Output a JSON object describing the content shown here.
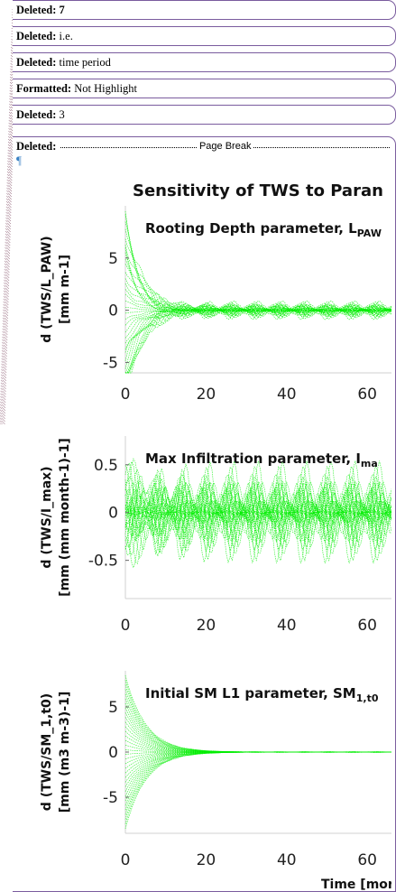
{
  "balloons": [
    {
      "label": "Deleted:",
      "text": "7",
      "bold_text": true
    },
    {
      "label": "Deleted:",
      "text": "i.e.",
      "bold_text": false
    },
    {
      "label": "Deleted:",
      "text": "time period",
      "bold_text": false
    },
    {
      "label": "Formatted:",
      "text": "Not Highlight",
      "bold_text": false
    },
    {
      "label": "Deleted:",
      "text": "3",
      "bold_text": false
    }
  ],
  "page_break": {
    "label": "Deleted:",
    "text": "Page Break",
    "pilcrow": "¶"
  },
  "figure": {
    "title": "Sensitivity of TWS to Paran",
    "xlabel": "Time [mor",
    "line_color": "#00ee00"
  },
  "chart_data": [
    {
      "type": "line",
      "title": "Rooting Depth parameter, L_PAW",
      "title_main": "Rooting Depth parameter, L",
      "title_sub": "PAW",
      "ylabel_line1": "d (TWS/L_PAW)",
      "ylabel_line2": "[mm m-1]",
      "ylim": [
        -6,
        10
      ],
      "yticks": [
        5,
        0,
        -5
      ],
      "xlim": [
        0,
        66
      ],
      "xticks": [
        0,
        20,
        40,
        60
      ],
      "envelope": {
        "initial_amplitude": 9.5,
        "decay_months": 4,
        "seasonal_amplitude": 1.0,
        "period_months": 6
      }
    },
    {
      "type": "line",
      "title": "Max Infiltration parameter, I_max",
      "title_main": "Max Infiltration parameter, I",
      "title_sub": "ma",
      "ylabel_line1": "d (TWS/I_max)",
      "ylabel_line2": "[mm (mm month-1)-1]",
      "ylim": [
        -0.9,
        0.8
      ],
      "yticks": [
        0.5,
        0,
        -0.5
      ],
      "xlim": [
        0,
        66
      ],
      "xticks": [
        0,
        20,
        40,
        60
      ],
      "envelope": {
        "initial_amplitude": 0.35,
        "decay_months": 6,
        "seasonal_amplitude": 0.6,
        "period_months": 6
      }
    },
    {
      "type": "line",
      "title": "Initial SM L1 parameter, SM_1,t0",
      "title_main": "Initial SM L1 parameter, SM",
      "title_sub": "1,t0",
      "ylabel_line1": "d (TWS/SM_1,t0)",
      "ylabel_line2": "[mm (m3 m-3)-1]",
      "ylim": [
        -9,
        9
      ],
      "yticks": [
        5,
        0,
        -5
      ],
      "xlim": [
        0,
        66
      ],
      "xticks": [
        0,
        20,
        40,
        60
      ],
      "envelope": {
        "initial_amplitude": 8.5,
        "decay_months": 5,
        "seasonal_amplitude": 0.05,
        "period_months": 6
      }
    }
  ]
}
